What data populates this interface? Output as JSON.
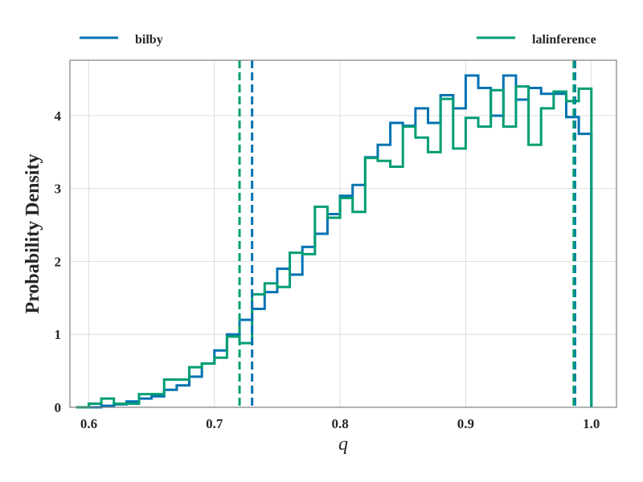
{
  "chart_data": {
    "type": "histogram",
    "xlabel": "q",
    "ylabel": "Probability Density",
    "xlim": [
      0.585,
      1.02
    ],
    "ylim": [
      0,
      4.76
    ],
    "xticks": [
      0.6,
      0.7,
      0.8,
      0.9,
      1.0
    ],
    "xtick_labels": [
      "0.6",
      "0.7",
      "0.8",
      "0.9",
      "1.0"
    ],
    "yticks": [
      0,
      1,
      2,
      3,
      4
    ],
    "ytick_labels": [
      "0",
      "1",
      "2",
      "3",
      "4"
    ],
    "grid": true,
    "legend": {
      "placement": "above-plot",
      "entries": [
        {
          "label": "bilby",
          "color": "#0072b2"
        },
        {
          "label": "lalinference",
          "color": "#009e73"
        }
      ]
    },
    "series": [
      {
        "name": "bilby",
        "color": "#0072b2",
        "bin_edges": [
          0.59,
          0.6,
          0.61,
          0.62,
          0.63,
          0.64,
          0.65,
          0.66,
          0.67,
          0.68,
          0.69,
          0.7,
          0.71,
          0.72,
          0.73,
          0.74,
          0.75,
          0.76,
          0.77,
          0.78,
          0.79,
          0.8,
          0.81,
          0.82,
          0.83,
          0.84,
          0.85,
          0.86,
          0.87,
          0.88,
          0.89,
          0.9,
          0.91,
          0.92,
          0.93,
          0.94,
          0.95,
          0.96,
          0.97,
          0.98,
          0.99,
          1.0
        ],
        "densities": [
          0.0,
          0.0,
          0.02,
          0.04,
          0.08,
          0.12,
          0.15,
          0.24,
          0.3,
          0.42,
          0.6,
          0.78,
          1.0,
          1.2,
          1.35,
          1.58,
          1.9,
          1.82,
          2.2,
          2.38,
          2.65,
          2.9,
          3.05,
          3.43,
          3.6,
          3.9,
          3.86,
          4.1,
          3.9,
          4.28,
          4.1,
          4.55,
          4.38,
          4.0,
          4.55,
          4.22,
          4.38,
          4.3,
          4.3,
          3.98,
          3.75
        ],
        "credible_interval": [
          0.73,
          0.987
        ]
      },
      {
        "name": "lalinference",
        "color": "#009e73",
        "bin_edges": [
          0.59,
          0.6,
          0.61,
          0.62,
          0.63,
          0.64,
          0.65,
          0.66,
          0.67,
          0.68,
          0.69,
          0.7,
          0.71,
          0.72,
          0.73,
          0.74,
          0.75,
          0.76,
          0.77,
          0.78,
          0.79,
          0.8,
          0.81,
          0.82,
          0.83,
          0.84,
          0.85,
          0.86,
          0.87,
          0.88,
          0.89,
          0.9,
          0.91,
          0.92,
          0.93,
          0.94,
          0.95,
          0.96,
          0.97,
          0.98,
          0.99,
          1.0
        ],
        "densities": [
          0.0,
          0.05,
          0.12,
          0.05,
          0.05,
          0.18,
          0.18,
          0.38,
          0.38,
          0.55,
          0.6,
          0.68,
          0.97,
          0.88,
          1.55,
          1.7,
          1.65,
          2.12,
          2.1,
          2.75,
          2.6,
          2.87,
          2.68,
          3.42,
          3.38,
          3.3,
          3.85,
          3.7,
          3.5,
          4.23,
          3.55,
          3.97,
          3.85,
          4.35,
          3.85,
          4.4,
          3.6,
          4.1,
          4.33,
          4.2,
          4.37
        ],
        "credible_interval": [
          0.72,
          0.986
        ]
      }
    ]
  }
}
